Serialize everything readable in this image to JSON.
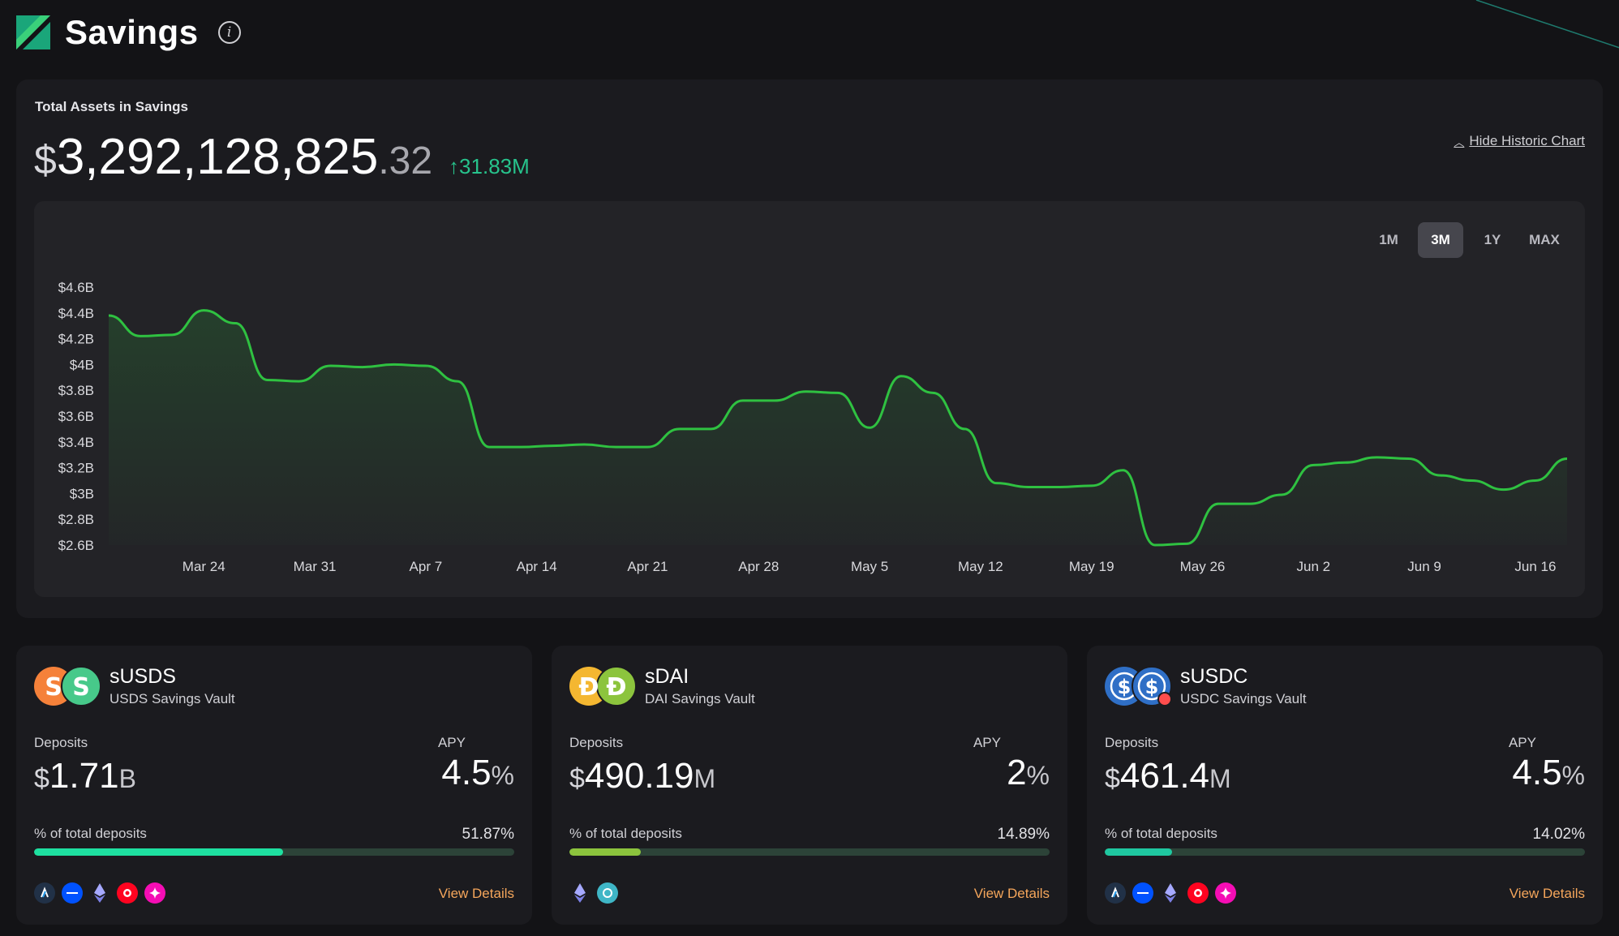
{
  "page": {
    "title": "Savings",
    "info_icon": "info-icon"
  },
  "assets": {
    "label": "Total Assets in Savings",
    "total_dollar": "$",
    "total_main": "3,292,128,825",
    "total_cents": ".32",
    "change": "↑31.83M",
    "hide_chart_label": "Hide Historic Chart",
    "ranges": [
      "1M",
      "3M",
      "1Y",
      "MAX"
    ],
    "active_range": "3M"
  },
  "chart_data": {
    "type": "area",
    "title": "",
    "ylim": [
      2.6,
      4.6
    ],
    "y_ticks": [
      "$4.6B",
      "$4.4B",
      "$4.2B",
      "$4B",
      "$3.8B",
      "$3.6B",
      "$3.4B",
      "$3.2B",
      "$3B",
      "$2.8B",
      "$2.6B"
    ],
    "x_ticks": [
      "Mar 24",
      "Mar 31",
      "Apr 7",
      "Apr 14",
      "Apr 21",
      "Apr 28",
      "May 5",
      "May 12",
      "May 19",
      "May 26",
      "Jun 2",
      "Jun 9",
      "Jun 16"
    ],
    "line_color": "#2fc141",
    "series": [
      {
        "x": [
          "2025-03-18",
          "2025-03-20",
          "2025-03-22",
          "2025-03-24",
          "2025-03-26",
          "2025-03-28",
          "2025-03-30",
          "2025-04-01",
          "2025-04-03",
          "2025-04-05",
          "2025-04-07",
          "2025-04-09",
          "2025-04-11",
          "2025-04-13",
          "2025-04-15",
          "2025-04-17",
          "2025-04-19",
          "2025-04-21",
          "2025-04-23",
          "2025-04-25",
          "2025-04-27",
          "2025-04-29",
          "2025-05-01",
          "2025-05-03",
          "2025-05-05",
          "2025-05-07",
          "2025-05-09",
          "2025-05-11",
          "2025-05-13",
          "2025-05-15",
          "2025-05-17",
          "2025-05-19",
          "2025-05-21",
          "2025-05-23",
          "2025-05-25",
          "2025-05-27",
          "2025-05-29",
          "2025-05-31",
          "2025-06-02",
          "2025-06-04",
          "2025-06-06",
          "2025-06-08",
          "2025-06-10",
          "2025-06-12",
          "2025-06-14",
          "2025-06-16",
          "2025-06-18"
        ],
        "y": [
          4.38,
          4.22,
          4.23,
          4.42,
          4.32,
          3.88,
          3.87,
          3.99,
          3.98,
          4.0,
          3.99,
          3.87,
          3.36,
          3.36,
          3.37,
          3.38,
          3.36,
          3.36,
          3.5,
          3.5,
          3.72,
          3.72,
          3.79,
          3.78,
          3.51,
          3.91,
          3.78,
          3.5,
          3.08,
          3.05,
          3.05,
          3.06,
          3.18,
          2.6,
          2.61,
          2.92,
          2.92,
          2.99,
          3.22,
          3.24,
          3.28,
          3.27,
          3.14,
          3.1,
          3.03,
          3.1,
          3.27
        ]
      }
    ]
  },
  "vaults": [
    {
      "name": "sUSDS",
      "sub": "USDS Savings Vault",
      "deposits_label": "Deposits",
      "cur": "$",
      "deposits_num": "1.71",
      "deposits_unit": "B",
      "apy_label": "APY",
      "apy_num": "4.5",
      "apy_pct": "%",
      "pct_label": "% of total deposits",
      "pct_text": "51.87%",
      "pct_value": 51.87,
      "bar_color": "#1ee0a0",
      "networks": [
        "arbitrum-icon",
        "base-icon",
        "ethereum-icon",
        "optimism-icon",
        "unichain-icon"
      ],
      "view_details": "View Details"
    },
    {
      "name": "sDAI",
      "sub": "DAI Savings Vault",
      "deposits_label": "Deposits",
      "cur": "$",
      "deposits_num": "490.19",
      "deposits_unit": "M",
      "apy_label": "APY",
      "apy_num": "2",
      "apy_pct": "%",
      "pct_label": "% of total deposits",
      "pct_text": "14.89%",
      "pct_value": 14.89,
      "bar_color": "#8cc43d",
      "networks": [
        "ethereum-icon",
        "gnosis-icon"
      ],
      "view_details": "View Details"
    },
    {
      "name": "sUSDC",
      "sub": "USDC Savings Vault",
      "deposits_label": "Deposits",
      "cur": "$",
      "deposits_num": "461.4",
      "deposits_unit": "M",
      "apy_label": "APY",
      "apy_num": "4.5",
      "apy_pct": "%",
      "pct_label": "% of total deposits",
      "pct_text": "14.02%",
      "pct_value": 14.02,
      "bar_color": "#1fc7a0",
      "networks": [
        "arbitrum-icon",
        "base-icon",
        "ethereum-icon",
        "optimism-icon",
        "unichain-icon"
      ],
      "view_details": "View Details"
    }
  ]
}
